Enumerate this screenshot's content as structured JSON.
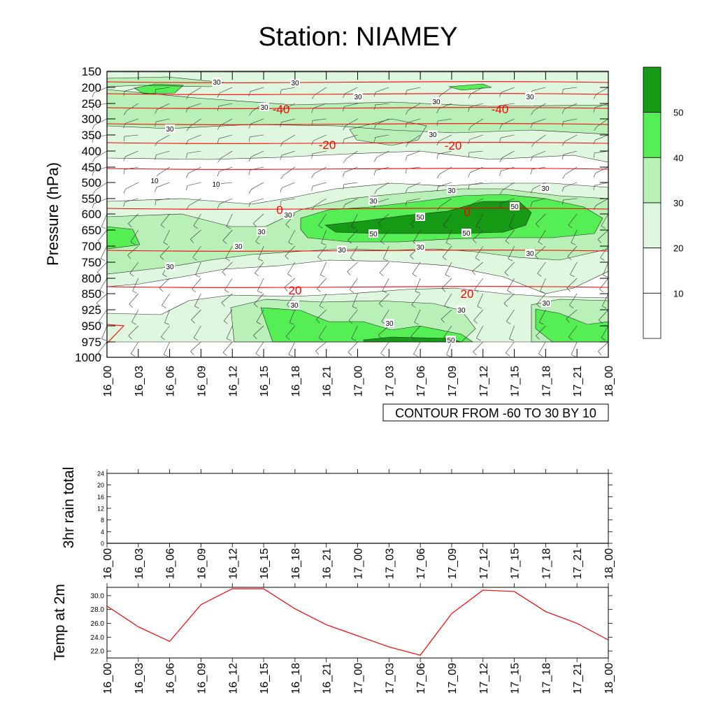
{
  "title": "Station: NIAMEY",
  "chart_data": [
    {
      "type": "heatmap",
      "ylabel": "Pressure (hPa)",
      "y_levels": [
        "150",
        "200",
        "250",
        "300",
        "350",
        "400",
        "450",
        "500",
        "550",
        "600",
        "650",
        "700",
        "750",
        "800",
        "850",
        "925",
        "950",
        "975",
        "1000"
      ],
      "x_ticks": [
        "16_00",
        "16_03",
        "16_06",
        "16_09",
        "16_12",
        "16_15",
        "16_18",
        "16_21",
        "17_00",
        "17_03",
        "17_06",
        "17_09",
        "17_12",
        "17_15",
        "17_18",
        "17_21",
        "18_00"
      ],
      "fill_legend_labels": [
        "10",
        "20",
        "30",
        "40",
        "50"
      ],
      "fill_colors": [
        "#ffffff",
        "#ffffff",
        "#dff7df",
        "#b8f0b8",
        "#55ee55",
        "#169a16"
      ],
      "wind_speed_contour_labels": [
        "10",
        "30",
        "50"
      ],
      "temperature_contour_levels": [
        "-40",
        "-20",
        "0",
        "20"
      ],
      "temperature_contour_color": "#ff0000",
      "info_box": "CONTOUR FROM -60 TO 30 BY 10"
    },
    {
      "type": "line",
      "ylabel": "3hr rain total",
      "x": [
        "16_00",
        "16_03",
        "16_06",
        "16_09",
        "16_12",
        "16_15",
        "16_18",
        "16_21",
        "17_00",
        "17_03",
        "17_06",
        "17_09",
        "17_12",
        "17_15",
        "17_18",
        "17_21",
        "18_00"
      ],
      "yticks": [
        "0",
        "4",
        "8",
        "12",
        "16",
        "20",
        "24"
      ],
      "ylim": [
        0,
        24
      ],
      "values": [
        0,
        0,
        0,
        0,
        0,
        0,
        0,
        0,
        0,
        0,
        0,
        0,
        0,
        0,
        0,
        0,
        0
      ]
    },
    {
      "type": "line",
      "ylabel": "Temp at 2m",
      "x": [
        "16_00",
        "16_03",
        "16_06",
        "16_09",
        "16_12",
        "16_15",
        "16_18",
        "16_21",
        "17_00",
        "17_03",
        "17_06",
        "17_09",
        "17_12",
        "17_15",
        "17_18",
        "17_21",
        "18_00"
      ],
      "yticks": [
        "22.0",
        "24.0",
        "26.0",
        "28.0",
        "30.0"
      ],
      "ylim": [
        21.0,
        31.2
      ],
      "values": [
        28.5,
        25.5,
        23.4,
        28.7,
        31.0,
        31.0,
        28.1,
        25.8,
        24.2,
        22.6,
        21.4,
        27.4,
        30.8,
        30.6,
        27.7,
        26.0,
        23.6
      ],
      "line_color": "#ff0000"
    }
  ]
}
